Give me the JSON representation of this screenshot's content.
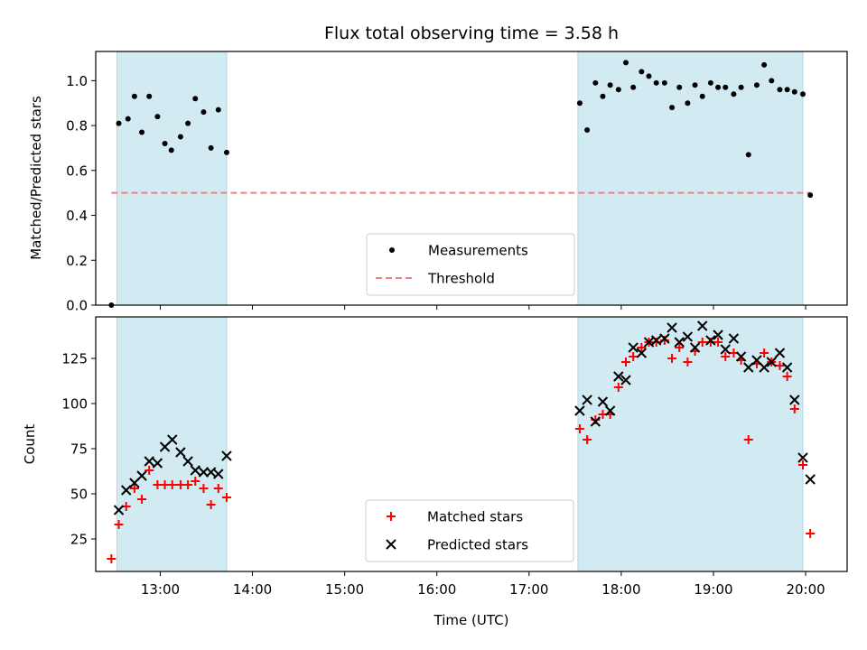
{
  "title": "Flux total observing time = 3.58 h",
  "colors": {
    "shade": "#add8e6",
    "measurement": "#000000",
    "threshold": "#f08080",
    "matched": "#ff0000",
    "predicted": "#000000"
  },
  "chart_data": [
    {
      "type": "scatter",
      "ylabel": "Matched/Predicted stars",
      "xlabel": "",
      "xlim": [
        12.3,
        20.45
      ],
      "ylim": [
        0,
        1.13
      ],
      "yticks": [
        0.0,
        0.2,
        0.4,
        0.6,
        0.8,
        1.0
      ],
      "ytick_labels": [
        "0.0",
        "0.2",
        "0.4",
        "0.6",
        "0.8",
        "1.0"
      ],
      "shaded_intervals": [
        [
          12.53,
          13.72
        ],
        [
          17.53,
          19.97
        ]
      ],
      "threshold": {
        "value": 0.5,
        "x_range": [
          12.47,
          20.05
        ]
      },
      "legend": {
        "position": "lower-center",
        "entries": [
          "Measurements",
          "Threshold"
        ]
      },
      "series": [
        {
          "name": "Measurements",
          "marker": "dot",
          "points": [
            [
              12.47,
              0.0
            ],
            [
              12.55,
              0.81
            ],
            [
              12.65,
              0.83
            ],
            [
              12.72,
              0.93
            ],
            [
              12.8,
              0.77
            ],
            [
              12.88,
              0.93
            ],
            [
              12.97,
              0.84
            ],
            [
              13.05,
              0.72
            ],
            [
              13.12,
              0.69
            ],
            [
              13.22,
              0.75
            ],
            [
              13.3,
              0.81
            ],
            [
              13.38,
              0.92
            ],
            [
              13.47,
              0.86
            ],
            [
              13.55,
              0.7
            ],
            [
              13.63,
              0.87
            ],
            [
              13.72,
              0.68
            ],
            [
              17.55,
              0.9
            ],
            [
              17.63,
              0.78
            ],
            [
              17.72,
              0.99
            ],
            [
              17.8,
              0.93
            ],
            [
              17.88,
              0.98
            ],
            [
              17.97,
              0.96
            ],
            [
              18.05,
              1.08
            ],
            [
              18.13,
              0.97
            ],
            [
              18.22,
              1.04
            ],
            [
              18.3,
              1.02
            ],
            [
              18.38,
              0.99
            ],
            [
              18.47,
              0.99
            ],
            [
              18.55,
              0.88
            ],
            [
              18.63,
              0.97
            ],
            [
              18.72,
              0.9
            ],
            [
              18.8,
              0.98
            ],
            [
              18.88,
              0.93
            ],
            [
              18.97,
              0.99
            ],
            [
              19.05,
              0.97
            ],
            [
              19.13,
              0.97
            ],
            [
              19.22,
              0.94
            ],
            [
              19.3,
              0.97
            ],
            [
              19.38,
              0.67
            ],
            [
              19.47,
              0.98
            ],
            [
              19.55,
              1.07
            ],
            [
              19.63,
              1.0
            ],
            [
              19.72,
              0.96
            ],
            [
              19.8,
              0.96
            ],
            [
              19.88,
              0.95
            ],
            [
              19.97,
              0.94
            ],
            [
              20.05,
              0.49
            ]
          ]
        }
      ]
    },
    {
      "type": "scatter",
      "ylabel": "Count",
      "xlabel": "Time (UTC)",
      "xlim": [
        12.3,
        20.45
      ],
      "ylim": [
        7,
        148
      ],
      "yticks": [
        25,
        50,
        75,
        100,
        125
      ],
      "ytick_labels": [
        "25",
        "50",
        "75",
        "100",
        "125"
      ],
      "xticks": [
        13,
        14,
        15,
        16,
        17,
        18,
        19,
        20
      ],
      "xtick_labels": [
        "13:00",
        "14:00",
        "15:00",
        "16:00",
        "17:00",
        "18:00",
        "19:00",
        "20:00"
      ],
      "shaded_intervals": [
        [
          12.53,
          13.72
        ],
        [
          17.53,
          19.97
        ]
      ],
      "legend": {
        "position": "lower-center",
        "entries": [
          "Matched stars",
          "Predicted stars"
        ]
      },
      "series": [
        {
          "name": "Matched stars",
          "marker": "plus",
          "points": [
            [
              12.47,
              14
            ],
            [
              12.55,
              33
            ],
            [
              12.63,
              43
            ],
            [
              12.72,
              53
            ],
            [
              12.8,
              47
            ],
            [
              12.88,
              63
            ],
            [
              12.97,
              55
            ],
            [
              13.05,
              55
            ],
            [
              13.13,
              55
            ],
            [
              13.22,
              55
            ],
            [
              13.3,
              55
            ],
            [
              13.38,
              57
            ],
            [
              13.47,
              53
            ],
            [
              13.55,
              44
            ],
            [
              13.63,
              53
            ],
            [
              13.72,
              48
            ],
            [
              17.55,
              86
            ],
            [
              17.63,
              80
            ],
            [
              17.72,
              91
            ],
            [
              17.8,
              94
            ],
            [
              17.88,
              94
            ],
            [
              17.97,
              109
            ],
            [
              18.05,
              123
            ],
            [
              18.13,
              126
            ],
            [
              18.22,
              131
            ],
            [
              18.3,
              134
            ],
            [
              18.38,
              134
            ],
            [
              18.47,
              135
            ],
            [
              18.55,
              125
            ],
            [
              18.63,
              131
            ],
            [
              18.72,
              123
            ],
            [
              18.8,
              129
            ],
            [
              18.88,
              134
            ],
            [
              18.97,
              134
            ],
            [
              19.05,
              134
            ],
            [
              19.13,
              126
            ],
            [
              19.22,
              128
            ],
            [
              19.3,
              124
            ],
            [
              19.38,
              80
            ],
            [
              19.47,
              122
            ],
            [
              19.55,
              128
            ],
            [
              19.63,
              123
            ],
            [
              19.72,
              121
            ],
            [
              19.8,
              115
            ],
            [
              19.88,
              97
            ],
            [
              19.97,
              66
            ],
            [
              20.05,
              28
            ]
          ]
        },
        {
          "name": "Predicted stars",
          "marker": "x",
          "points": [
            [
              12.55,
              41
            ],
            [
              12.63,
              52
            ],
            [
              12.72,
              56
            ],
            [
              12.8,
              60
            ],
            [
              12.88,
              68
            ],
            [
              12.97,
              67
            ],
            [
              13.05,
              76
            ],
            [
              13.13,
              80
            ],
            [
              13.22,
              73
            ],
            [
              13.3,
              68
            ],
            [
              13.38,
              63
            ],
            [
              13.47,
              62
            ],
            [
              13.55,
              62
            ],
            [
              13.63,
              61
            ],
            [
              13.72,
              71
            ],
            [
              17.55,
              96
            ],
            [
              17.63,
              102
            ],
            [
              17.72,
              90
            ],
            [
              17.8,
              101
            ],
            [
              17.88,
              96
            ],
            [
              17.97,
              115
            ],
            [
              18.05,
              113
            ],
            [
              18.13,
              131
            ],
            [
              18.22,
              128
            ],
            [
              18.3,
              134
            ],
            [
              18.38,
              135
            ],
            [
              18.47,
              136
            ],
            [
              18.55,
              142
            ],
            [
              18.63,
              134
            ],
            [
              18.72,
              137
            ],
            [
              18.8,
              131
            ],
            [
              18.88,
              143
            ],
            [
              18.97,
              135
            ],
            [
              19.05,
              138
            ],
            [
              19.13,
              130
            ],
            [
              19.22,
              136
            ],
            [
              19.3,
              126
            ],
            [
              19.38,
              120
            ],
            [
              19.47,
              124
            ],
            [
              19.55,
              120
            ],
            [
              19.63,
              123
            ],
            [
              19.72,
              128
            ],
            [
              19.8,
              120
            ],
            [
              19.88,
              102
            ],
            [
              19.97,
              70
            ],
            [
              20.05,
              58
            ]
          ]
        }
      ]
    }
  ]
}
